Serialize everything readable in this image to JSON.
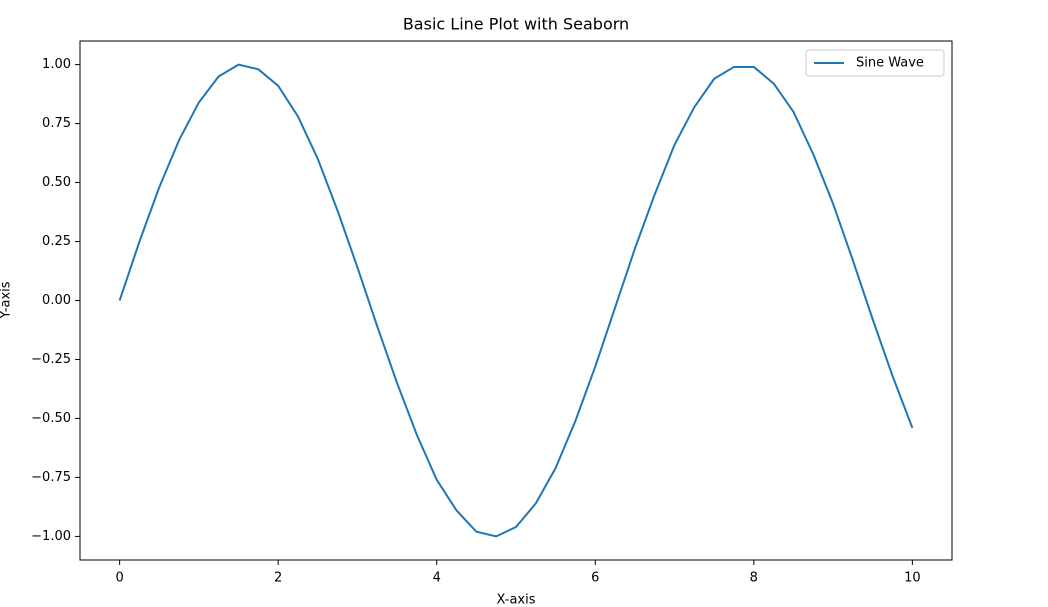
{
  "chart_data": {
    "type": "line",
    "title": "Basic Line Plot with Seaborn",
    "xlabel": "X-axis",
    "ylabel": "Y-axis",
    "x": [
      0,
      0.25,
      0.5,
      0.75,
      1,
      1.25,
      1.5,
      1.75,
      2,
      2.25,
      2.5,
      2.75,
      3,
      3.25,
      3.5,
      3.75,
      4,
      4.25,
      4.5,
      4.75,
      5,
      5.25,
      5.5,
      5.75,
      6,
      6.25,
      6.5,
      6.75,
      7,
      7.25,
      7.5,
      7.75,
      8,
      8.25,
      8.5,
      8.75,
      9,
      9.25,
      9.5,
      9.75,
      10
    ],
    "series": [
      {
        "name": "Sine Wave",
        "color": "#1f77b4",
        "values": [
          0,
          0.25,
          0.48,
          0.68,
          0.84,
          0.95,
          1.0,
          0.98,
          0.91,
          0.78,
          0.6,
          0.38,
          0.14,
          -0.11,
          -0.35,
          -0.57,
          -0.76,
          -0.89,
          -0.98,
          -1.0,
          -0.96,
          -0.86,
          -0.71,
          -0.51,
          -0.28,
          -0.03,
          0.22,
          0.45,
          0.66,
          0.82,
          0.94,
          0.99,
          0.99,
          0.92,
          0.8,
          0.62,
          0.41,
          0.17,
          -0.08,
          -0.32,
          -0.54
        ]
      }
    ],
    "xlim": [
      -0.5,
      10.5
    ],
    "xticks": [
      0,
      2,
      4,
      6,
      8,
      10
    ],
    "ylim": [
      -1.1,
      1.1
    ],
    "yticks": [
      {
        "value": -1,
        "label": "−1.00"
      },
      {
        "value": -0.75,
        "label": "−0.75"
      },
      {
        "value": -0.5,
        "label": "−0.50"
      },
      {
        "value": -0.25,
        "label": "−0.25"
      },
      {
        "value": 0,
        "label": "0.00"
      },
      {
        "value": 0.25,
        "label": "0.25"
      },
      {
        "value": 0.5,
        "label": "0.50"
      },
      {
        "value": 0.75,
        "label": "0.75"
      },
      {
        "value": 1,
        "label": "1.00"
      }
    ],
    "grid": false,
    "legend": "upper right"
  }
}
